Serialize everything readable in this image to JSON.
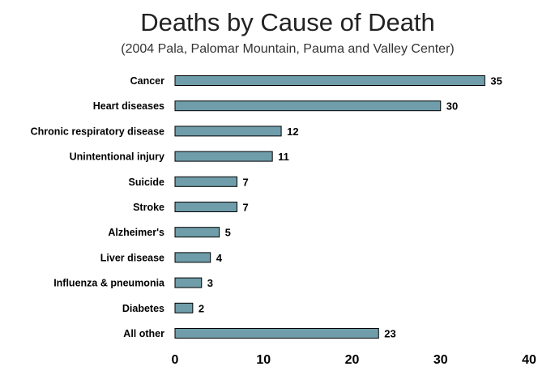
{
  "chart_data": {
    "type": "bar",
    "orientation": "horizontal",
    "title": "Deaths by Cause of Death",
    "subtitle": "(2004 Pala, Palomar Mountain, Pauma and Valley Center)",
    "categories": [
      "Cancer",
      "Heart diseases",
      "Chronic respiratory disease",
      "Unintentional injury",
      "Suicide",
      "Stroke",
      "Alzheimer's",
      "Liver disease",
      "Influenza & pneumonia",
      "Diabetes",
      "All other"
    ],
    "values": [
      35,
      30,
      12,
      11,
      7,
      7,
      5,
      4,
      3,
      2,
      23
    ],
    "xlim": [
      0,
      40
    ],
    "xticks": [
      0,
      10,
      20,
      30,
      40
    ],
    "xlabel": "",
    "ylabel": "",
    "grid": false,
    "bar_color": "#6F9DAA"
  }
}
